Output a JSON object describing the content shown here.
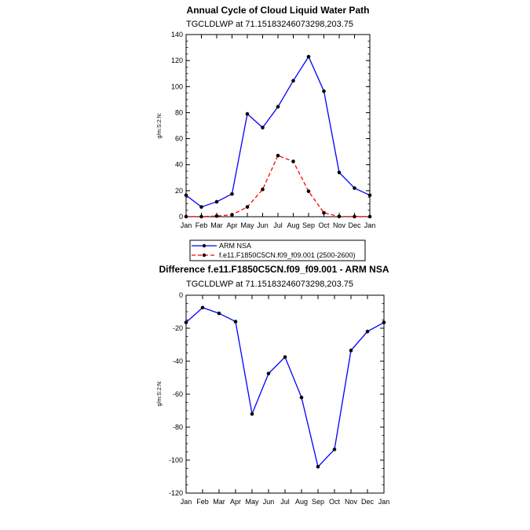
{
  "chart_data": [
    {
      "type": "line",
      "title": "Annual Cycle of Cloud Liquid Water Path",
      "subtitle": "TGCLDLWP at 71.15183246073298,203.75",
      "ylabel": "g/m:S:2:N:",
      "xlabel": "",
      "ylim": [
        0,
        140
      ],
      "yticks": [
        0,
        20,
        40,
        60,
        80,
        100,
        120,
        140
      ],
      "categories": [
        "Jan",
        "Feb",
        "Mar",
        "Apr",
        "May",
        "Jun",
        "Jul",
        "Aug",
        "Sep",
        "Oct",
        "Nov",
        "Dec",
        "Jan"
      ],
      "series": [
        {
          "name": "ARM NSA",
          "color": "#0000ff",
          "dash": "solid",
          "values": [
            16.5,
            7.5,
            11.5,
            17.5,
            79,
            68.5,
            84.5,
            104.5,
            123,
            96.5,
            34,
            22,
            16.5
          ]
        },
        {
          "name": "f.e11.F1850C5CN.f09_f09.001 (2500-2600)",
          "color": "#ff0000",
          "dash": "dashed",
          "values": [
            0.1,
            0.1,
            0.5,
            1.5,
            7.5,
            21,
            47,
            42.5,
            19.5,
            3,
            0.2,
            0.1,
            0.1
          ]
        }
      ],
      "legend": "below"
    },
    {
      "type": "line",
      "title": "Difference f.e11.F1850C5CN.f09_f09.001 - ARM NSA",
      "subtitle": "TGCLDLWP at 71.15183246073298,203.75",
      "ylabel": "g/m:S:2:N:",
      "xlabel": "",
      "ylim": [
        -120,
        0
      ],
      "yticks": [
        -120,
        -100,
        -80,
        -60,
        -40,
        -20,
        0
      ],
      "categories": [
        "Jan",
        "Feb",
        "Mar",
        "Apr",
        "May",
        "Jun",
        "Jul",
        "Aug",
        "Sep",
        "Oct",
        "Nov",
        "Dec",
        "Jan"
      ],
      "series": [
        {
          "name": "Difference",
          "color": "#0000ff",
          "dash": "solid",
          "values": [
            -16.5,
            -7.5,
            -11,
            -16,
            -72,
            -47.5,
            -37.5,
            -62,
            -104,
            -93.5,
            -33.5,
            -22,
            -16.5
          ]
        }
      ]
    }
  ]
}
